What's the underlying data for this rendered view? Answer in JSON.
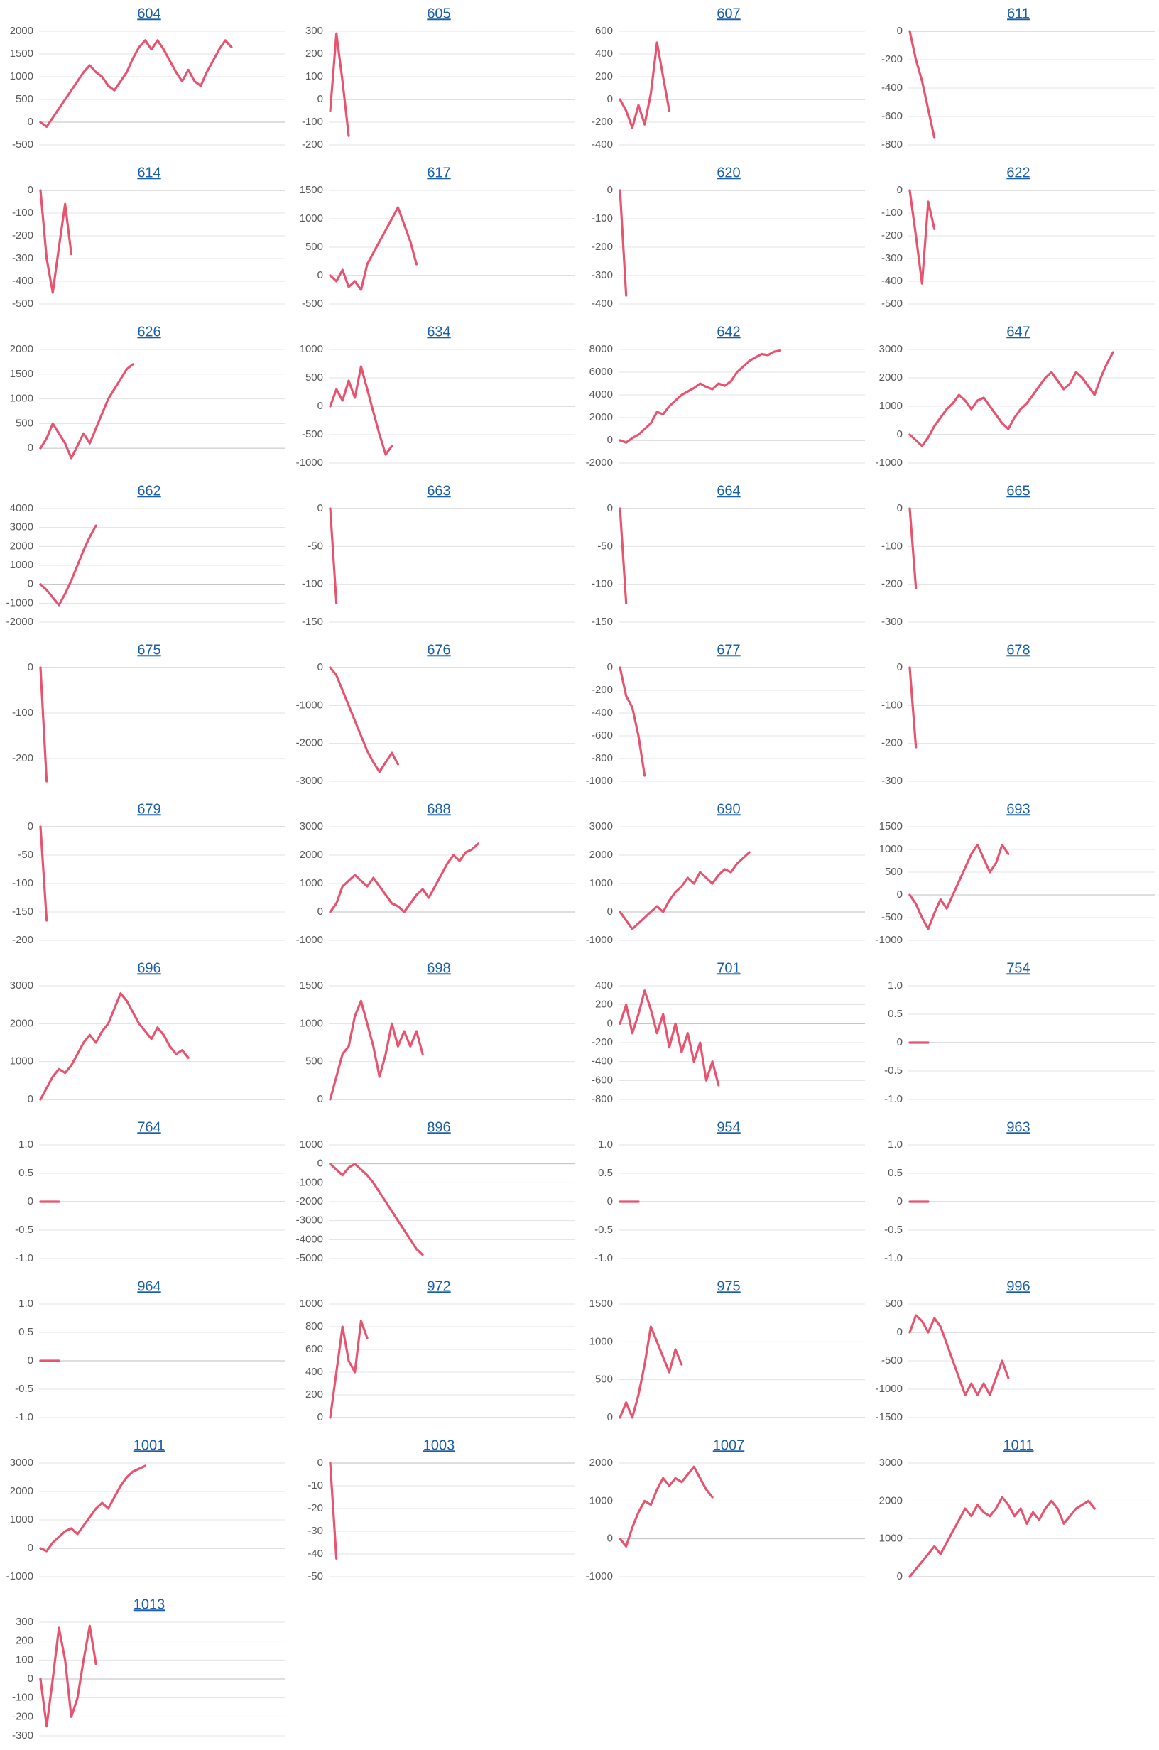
{
  "chart_data": [
    {
      "type": "line",
      "title": "604",
      "color": "#e8546f",
      "ylim": [
        -500,
        2000
      ],
      "yticks": [
        -500,
        0,
        500,
        1000,
        1500,
        2000
      ],
      "values": [
        0,
        -100,
        100,
        300,
        500,
        700,
        900,
        1100,
        1250,
        1100,
        1000,
        800,
        700,
        900,
        1100,
        1400,
        1650,
        1800,
        1600,
        1800,
        1600,
        1350,
        1100,
        900,
        1150,
        900,
        800,
        1100,
        1350,
        1600,
        1800,
        1650
      ]
    },
    {
      "type": "line",
      "title": "605",
      "color": "#e8546f",
      "ylim": [
        -200,
        300
      ],
      "yticks": [
        -200,
        -100,
        0,
        100,
        200,
        300
      ],
      "values": [
        -50,
        290,
        80,
        -160
      ]
    },
    {
      "type": "line",
      "title": "607",
      "color": "#e8546f",
      "ylim": [
        -400,
        600
      ],
      "yticks": [
        -400,
        -200,
        0,
        200,
        400,
        600
      ],
      "values": [
        0,
        -100,
        -250,
        -50,
        -220,
        50,
        500,
        200,
        -100
      ]
    },
    {
      "type": "line",
      "title": "611",
      "color": "#e8546f",
      "ylim": [
        -800,
        0
      ],
      "yticks": [
        -800,
        -600,
        -400,
        -200,
        0
      ],
      "values": [
        0,
        -200,
        -350,
        -550,
        -750
      ]
    },
    {
      "type": "line",
      "title": "614",
      "color": "#e8546f",
      "ylim": [
        -500,
        0
      ],
      "yticks": [
        -500,
        -400,
        -300,
        -200,
        -100,
        0
      ],
      "values": [
        0,
        -300,
        -450,
        -250,
        -60,
        -280
      ]
    },
    {
      "type": "line",
      "title": "617",
      "color": "#e8546f",
      "ylim": [
        -500,
        1500
      ],
      "yticks": [
        -500,
        0,
        500,
        1000,
        1500
      ],
      "values": [
        0,
        -100,
        100,
        -200,
        -100,
        -250,
        200,
        400,
        600,
        800,
        1000,
        1200,
        900,
        600,
        200
      ]
    },
    {
      "type": "line",
      "title": "620",
      "color": "#e8546f",
      "ylim": [
        -400,
        0
      ],
      "yticks": [
        -400,
        -300,
        -200,
        -100,
        0
      ],
      "values": [
        0,
        -370
      ]
    },
    {
      "type": "line",
      "title": "622",
      "color": "#e8546f",
      "ylim": [
        -500,
        0
      ],
      "yticks": [
        -500,
        -400,
        -300,
        -200,
        -100,
        0
      ],
      "values": [
        0,
        -200,
        -410,
        -50,
        -170
      ]
    },
    {
      "type": "line",
      "title": "626",
      "color": "#e8546f",
      "ylim": [
        -300,
        2000
      ],
      "yticks": [
        0,
        500,
        1000,
        1500,
        2000
      ],
      "values": [
        0,
        200,
        500,
        300,
        100,
        -200,
        50,
        300,
        100,
        400,
        700,
        1000,
        1200,
        1400,
        1600,
        1700
      ]
    },
    {
      "type": "line",
      "title": "634",
      "color": "#e8546f",
      "ylim": [
        -1000,
        1000
      ],
      "yticks": [
        -1000,
        -500,
        0,
        500,
        1000
      ],
      "values": [
        0,
        300,
        100,
        450,
        150,
        700,
        300,
        -100,
        -500,
        -850,
        -700
      ]
    },
    {
      "type": "line",
      "title": "642",
      "color": "#e8546f",
      "ylim": [
        -2000,
        8000
      ],
      "yticks": [
        -2000,
        0,
        2000,
        4000,
        6000,
        8000
      ],
      "values": [
        0,
        -200,
        200,
        500,
        1000,
        1500,
        2500,
        2300,
        3000,
        3500,
        4000,
        4300,
        4600,
        5000,
        4700,
        4500,
        5000,
        4800,
        5200,
        6000,
        6500,
        7000,
        7300,
        7600,
        7500,
        7800,
        7900
      ]
    },
    {
      "type": "line",
      "title": "647",
      "color": "#e8546f",
      "ylim": [
        -1000,
        3000
      ],
      "yticks": [
        -1000,
        0,
        1000,
        2000,
        3000
      ],
      "values": [
        0,
        -200,
        -400,
        -100,
        300,
        600,
        900,
        1100,
        1400,
        1200,
        900,
        1200,
        1300,
        1000,
        700,
        400,
        200,
        600,
        900,
        1100,
        1400,
        1700,
        2000,
        2200,
        1900,
        1600,
        1800,
        2200,
        2000,
        1700,
        1400,
        2000,
        2500,
        2900
      ]
    },
    {
      "type": "line",
      "title": "662",
      "color": "#e8546f",
      "ylim": [
        -2000,
        4000
      ],
      "yticks": [
        -2000,
        -1000,
        0,
        1000,
        2000,
        3000,
        4000
      ],
      "values": [
        0,
        -300,
        -700,
        -1100,
        -500,
        200,
        1000,
        1800,
        2500,
        3100
      ]
    },
    {
      "type": "line",
      "title": "663",
      "color": "#e8546f",
      "ylim": [
        -150,
        0
      ],
      "yticks": [
        -150,
        -100,
        -50,
        0
      ],
      "values": [
        0,
        -125
      ]
    },
    {
      "type": "line",
      "title": "664",
      "color": "#e8546f",
      "ylim": [
        -150,
        0
      ],
      "yticks": [
        -150,
        -100,
        -50,
        0
      ],
      "values": [
        0,
        -125
      ]
    },
    {
      "type": "line",
      "title": "665",
      "color": "#e8546f",
      "ylim": [
        -300,
        0
      ],
      "yticks": [
        -300,
        -200,
        -100,
        0
      ],
      "values": [
        0,
        -210
      ]
    },
    {
      "type": "line",
      "title": "675",
      "color": "#e8546f",
      "ylim": [
        -250,
        0
      ],
      "yticks": [
        -200,
        -100,
        0
      ],
      "values": [
        0,
        -250
      ]
    },
    {
      "type": "line",
      "title": "676",
      "color": "#e8546f",
      "ylim": [
        -3000,
        0
      ],
      "yticks": [
        -3000,
        -2000,
        -1000,
        0
      ],
      "values": [
        0,
        -200,
        -600,
        -1000,
        -1400,
        -1800,
        -2200,
        -2500,
        -2750,
        -2500,
        -2250,
        -2550
      ]
    },
    {
      "type": "line",
      "title": "677",
      "color": "#e8546f",
      "ylim": [
        -1000,
        0
      ],
      "yticks": [
        -1000,
        -800,
        -600,
        -400,
        -200,
        0
      ],
      "values": [
        0,
        -250,
        -350,
        -600,
        -950
      ]
    },
    {
      "type": "line",
      "title": "678",
      "color": "#e8546f",
      "ylim": [
        -300,
        0
      ],
      "yticks": [
        -300,
        -200,
        -100,
        0
      ],
      "values": [
        0,
        -210
      ]
    },
    {
      "type": "line",
      "title": "679",
      "color": "#e8546f",
      "ylim": [
        -200,
        0
      ],
      "yticks": [
        -200,
        -150,
        -100,
        -50,
        0
      ],
      "values": [
        0,
        -165
      ]
    },
    {
      "type": "line",
      "title": "688",
      "color": "#e8546f",
      "ylim": [
        -1000,
        3000
      ],
      "yticks": [
        -1000,
        0,
        1000,
        2000,
        3000
      ],
      "values": [
        0,
        300,
        900,
        1100,
        1300,
        1100,
        900,
        1200,
        900,
        600,
        300,
        200,
        0,
        300,
        600,
        800,
        500,
        900,
        1300,
        1700,
        2000,
        1800,
        2100,
        2200,
        2400
      ]
    },
    {
      "type": "line",
      "title": "690",
      "color": "#e8546f",
      "ylim": [
        -1000,
        3000
      ],
      "yticks": [
        -1000,
        0,
        1000,
        2000,
        3000
      ],
      "values": [
        0,
        -300,
        -600,
        -400,
        -200,
        0,
        200,
        0,
        400,
        700,
        900,
        1200,
        1000,
        1400,
        1200,
        1000,
        1300,
        1500,
        1400,
        1700,
        1900,
        2100
      ]
    },
    {
      "type": "line",
      "title": "693",
      "color": "#e8546f",
      "ylim": [
        -1000,
        1500
      ],
      "yticks": [
        -1000,
        -500,
        0,
        500,
        1000,
        1500
      ],
      "values": [
        0,
        -200,
        -500,
        -750,
        -400,
        -100,
        -300,
        0,
        300,
        600,
        900,
        1100,
        800,
        500,
        700,
        1100,
        900
      ]
    },
    {
      "type": "line",
      "title": "696",
      "color": "#e8546f",
      "ylim": [
        0,
        3000
      ],
      "yticks": [
        0,
        1000,
        2000,
        3000
      ],
      "values": [
        0,
        300,
        600,
        800,
        700,
        900,
        1200,
        1500,
        1700,
        1500,
        1800,
        2000,
        2400,
        2800,
        2600,
        2300,
        2000,
        1800,
        1600,
        1900,
        1700,
        1400,
        1200,
        1300,
        1100
      ]
    },
    {
      "type": "line",
      "title": "698",
      "color": "#e8546f",
      "ylim": [
        0,
        1500
      ],
      "yticks": [
        0,
        500,
        1000,
        1500
      ],
      "values": [
        0,
        300,
        600,
        700,
        1100,
        1300,
        1000,
        700,
        300,
        600,
        1000,
        700,
        900,
        700,
        900,
        600
      ]
    },
    {
      "type": "line",
      "title": "701",
      "color": "#e8546f",
      "ylim": [
        -800,
        400
      ],
      "yticks": [
        -800,
        -600,
        -400,
        -200,
        0,
        200,
        400
      ],
      "values": [
        0,
        200,
        -100,
        100,
        350,
        150,
        -100,
        100,
        -250,
        0,
        -300,
        -100,
        -400,
        -200,
        -600,
        -400,
        -650
      ]
    },
    {
      "type": "line",
      "title": "754",
      "color": "#e8546f",
      "ylim": [
        -1,
        1
      ],
      "yticks": [
        {
          "value": -1,
          "label": "-1.0"
        },
        -0.5,
        0,
        0.5,
        {
          "value": 1,
          "label": "1.0"
        }
      ],
      "values": [
        0,
        0,
        0,
        0
      ]
    },
    {
      "type": "line",
      "title": "764",
      "color": "#e8546f",
      "ylim": [
        -1,
        1
      ],
      "yticks": [
        {
          "value": -1,
          "label": "-1.0"
        },
        -0.5,
        0,
        0.5,
        {
          "value": 1,
          "label": "1.0"
        }
      ],
      "values": [
        0,
        0,
        0,
        0
      ]
    },
    {
      "type": "line",
      "title": "896",
      "color": "#e8546f",
      "ylim": [
        -5000,
        1000
      ],
      "yticks": [
        -5000,
        -4000,
        -3000,
        -2000,
        -1000,
        0,
        1000
      ],
      "values": [
        0,
        -300,
        -600,
        -200,
        0,
        -300,
        -600,
        -1000,
        -1500,
        -2000,
        -2500,
        -3000,
        -3500,
        -4000,
        -4500,
        -4800
      ]
    },
    {
      "type": "line",
      "title": "954",
      "color": "#e8546f",
      "ylim": [
        -1,
        1
      ],
      "yticks": [
        {
          "value": -1,
          "label": "-1.0"
        },
        -0.5,
        0,
        0.5,
        {
          "value": 1,
          "label": "1.0"
        }
      ],
      "values": [
        0,
        0,
        0,
        0
      ]
    },
    {
      "type": "line",
      "title": "963",
      "color": "#e8546f",
      "ylim": [
        -1,
        1
      ],
      "yticks": [
        {
          "value": -1,
          "label": "-1.0"
        },
        -0.5,
        0,
        0.5,
        {
          "value": 1,
          "label": "1.0"
        }
      ],
      "values": [
        0,
        0,
        0,
        0
      ]
    },
    {
      "type": "line",
      "title": "964",
      "color": "#e8546f",
      "ylim": [
        -1,
        1
      ],
      "yticks": [
        {
          "value": -1,
          "label": "-1.0"
        },
        -0.5,
        0,
        0.5,
        {
          "value": 1,
          "label": "1.0"
        }
      ],
      "values": [
        0,
        0,
        0,
        0
      ]
    },
    {
      "type": "line",
      "title": "972",
      "color": "#e8546f",
      "ylim": [
        0,
        1000
      ],
      "yticks": [
        0,
        200,
        400,
        600,
        800,
        1000
      ],
      "values": [
        0,
        400,
        800,
        500,
        400,
        850,
        700
      ]
    },
    {
      "type": "line",
      "title": "975",
      "color": "#e8546f",
      "ylim": [
        0,
        1500
      ],
      "yticks": [
        0,
        500,
        1000,
        1500
      ],
      "values": [
        0,
        200,
        0,
        300,
        700,
        1200,
        1000,
        800,
        600,
        900,
        700
      ]
    },
    {
      "type": "line",
      "title": "996",
      "color": "#e8546f",
      "ylim": [
        -1500,
        500
      ],
      "yticks": [
        -1500,
        -1000,
        -500,
        0,
        500
      ],
      "values": [
        0,
        300,
        200,
        0,
        250,
        100,
        -200,
        -500,
        -800,
        -1100,
        -900,
        -1100,
        -900,
        -1100,
        -800,
        -500,
        -800
      ]
    },
    {
      "type": "line",
      "title": "1001",
      "color": "#e8546f",
      "ylim": [
        -1000,
        3000
      ],
      "yticks": [
        -1000,
        0,
        1000,
        2000,
        3000
      ],
      "values": [
        0,
        -100,
        200,
        400,
        600,
        700,
        500,
        800,
        1100,
        1400,
        1600,
        1400,
        1800,
        2200,
        2500,
        2700,
        2800,
        2900
      ]
    },
    {
      "type": "line",
      "title": "1003",
      "color": "#e8546f",
      "ylim": [
        -50,
        0
      ],
      "yticks": [
        -50,
        -40,
        -30,
        -20,
        -10,
        0
      ],
      "values": [
        0,
        -42
      ]
    },
    {
      "type": "line",
      "title": "1007",
      "color": "#e8546f",
      "ylim": [
        -1000,
        2000
      ],
      "yticks": [
        -1000,
        0,
        1000,
        2000
      ],
      "values": [
        0,
        -200,
        300,
        700,
        1000,
        900,
        1300,
        1600,
        1400,
        1600,
        1500,
        1700,
        1900,
        1600,
        1300,
        1100
      ]
    },
    {
      "type": "line",
      "title": "1011",
      "color": "#e8546f",
      "ylim": [
        0,
        3000
      ],
      "yticks": [
        0,
        1000,
        2000,
        3000
      ],
      "values": [
        0,
        200,
        400,
        600,
        800,
        600,
        900,
        1200,
        1500,
        1800,
        1600,
        1900,
        1700,
        1600,
        1800,
        2100,
        1900,
        1600,
        1800,
        1400,
        1700,
        1500,
        1800,
        2000,
        1800,
        1400,
        1600,
        1800,
        1900,
        2000,
        1800
      ]
    },
    {
      "type": "line",
      "title": "1013",
      "color": "#e8546f",
      "ylim": [
        -300,
        300
      ],
      "yticks": [
        -300,
        -200,
        -100,
        0,
        100,
        200,
        300
      ],
      "values": [
        0,
        -250,
        0,
        270,
        100,
        -200,
        -100,
        100,
        280,
        80
      ]
    }
  ]
}
